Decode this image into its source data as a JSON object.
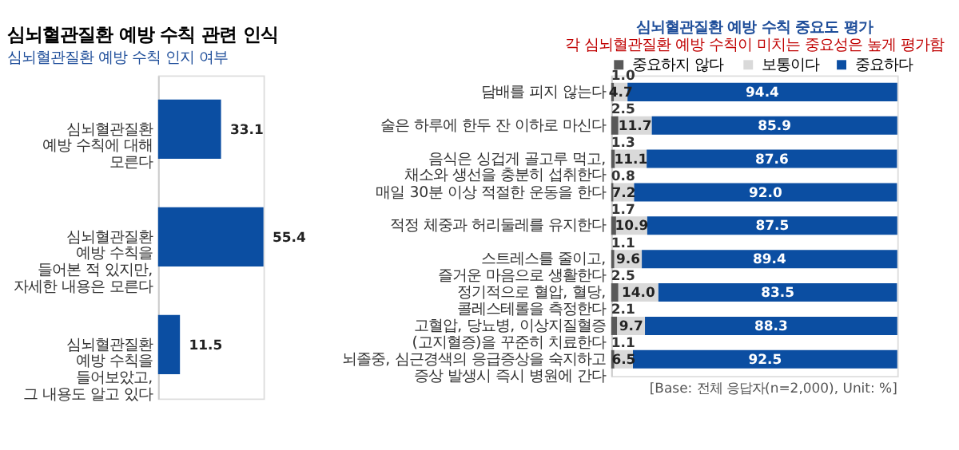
{
  "chart_data": [
    {
      "type": "bar",
      "orientation": "horizontal",
      "title": "심뇌혈관질환 예방 수칙 인지 여부",
      "annotations": [
        "심뇌혈관질환 예방 수칙 관련 인식"
      ],
      "categories": [
        "심뇌혈관질환\n예방 수칙에 대해\n모른다",
        "심뇌혈관질환\n예방 수칙을\n들어본 적 있지만,\n자세한 내용은 모른다",
        "심뇌혈관질환\n예방 수칙을\n들어보았고,\n그 내용도 알고 있다"
      ],
      "values": [
        33.1,
        55.4,
        11.5
      ],
      "color": "#0b4ea2",
      "data_labels": true,
      "grid": false
    },
    {
      "type": "bar",
      "orientation": "horizontal",
      "stacked": true,
      "title": "심뇌혈관질환 예방 수칙 중요도 평가",
      "subtitle": "각 심뇌혈관질환 예방 수칙이 미치는 중요성은 높게 평가함",
      "annotations": [
        "[Base: 전체 응답자(n=2,000), Unit: %]"
      ],
      "categories": [
        "담배를 피지 않는다",
        "술은 하루에 한두 잔 이하로 마신다",
        "음식은 싱겁게 골고루 먹고,\n채소와 생선을 충분히 섭취한다",
        "매일 30분 이상 적절한 운동을 한다",
        "적정 체중과 허리둘레를 유지한다",
        "스트레스를 줄이고,\n즐거운 마음으로 생활한다",
        "정기적으로 혈압, 혈당,\n콜레스테롤을 측정한다",
        "고혈압, 당뇨병, 이상지질혈증\n(고지혈증)을 꾸준히 치료한다",
        "뇌졸중, 심근경색의 응급증상을 숙지하고\n증상 발생시 즉시 병원에 간다"
      ],
      "series": [
        {
          "name": "중요하지 않다",
          "color": "#595959",
          "values": [
            1.0,
            2.5,
            1.3,
            0.8,
            1.7,
            1.1,
            2.5,
            2.1,
            1.1
          ],
          "value_labels": [
            "1.0",
            "2.5",
            "1.3",
            "0.8",
            "1.7",
            "1.1",
            "2.5",
            "2.1",
            "1.1"
          ]
        },
        {
          "name": "보통이다",
          "color": "#d9d9d9",
          "values": [
            4.7,
            11.7,
            11.1,
            7.2,
            10.9,
            9.6,
            14.0,
            9.7,
            6.5
          ],
          "value_labels": [
            "4.7",
            "11.7",
            "11.1",
            "7.2",
            "10.9",
            "9.6",
            "14.0",
            "9.7",
            "6.5"
          ]
        },
        {
          "name": "중요하다",
          "color": "#0b4ea2",
          "values": [
            94.4,
            85.9,
            87.6,
            92.0,
            87.5,
            89.4,
            83.5,
            88.3,
            92.5
          ],
          "value_labels": [
            "94.4",
            "85.9",
            "87.6",
            "92.0",
            "87.5",
            "89.4",
            "83.5",
            "88.3",
            "92.5"
          ]
        }
      ],
      "grid": false,
      "legend": "top right"
    }
  ]
}
